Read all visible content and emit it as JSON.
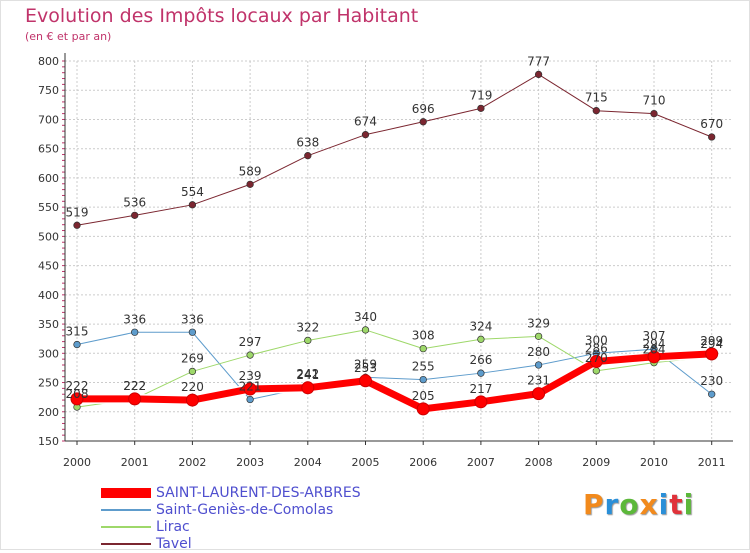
{
  "header": {
    "title": "Evolution des Impôts locaux par Habitant",
    "subtitle": "(en € et par an)"
  },
  "logo": {
    "text": "Proxiti",
    "colors": [
      "#f28a1c",
      "#2a8fd8",
      "#5cb83a",
      "#f28a1c",
      "#2a8fd8",
      "#e0323a",
      "#5cb83a"
    ]
  },
  "chart_data": {
    "type": "line",
    "x": [
      "2000",
      "2001",
      "2002",
      "2003",
      "2004",
      "2005",
      "2006",
      "2007",
      "2008",
      "2009",
      "2010",
      "2011"
    ],
    "ylim": [
      150,
      800
    ],
    "yticks": [
      150,
      200,
      250,
      300,
      350,
      400,
      450,
      500,
      550,
      600,
      650,
      700,
      750,
      800
    ],
    "grid": true,
    "legend_position": "bottom-left",
    "series": [
      {
        "name": "Tavel",
        "color": "#7b2630",
        "width": 1,
        "values": [
          519,
          536,
          554,
          589,
          638,
          674,
          696,
          719,
          777,
          715,
          710,
          670
        ],
        "labels": [
          "519",
          "536",
          "554",
          "589",
          "638",
          "674",
          "696",
          "719",
          "777",
          "715",
          "710",
          "670"
        ]
      },
      {
        "name": "Saint-Geniès-de-Comolas",
        "color": "#5e9ccc",
        "width": 1,
        "values": [
          315,
          336,
          336,
          221,
          242,
          259,
          255,
          266,
          280,
          300,
          307,
          230
        ],
        "labels": [
          "315",
          "336",
          "336",
          "221",
          "242",
          "259",
          "255",
          "266",
          "280",
          "300",
          "307",
          "230"
        ]
      },
      {
        "name": "Lirac",
        "color": "#9ed86a",
        "width": 1,
        "values": [
          208,
          222,
          269,
          297,
          322,
          340,
          308,
          324,
          329,
          270,
          284,
          294
        ],
        "labels": [
          "208",
          "222",
          "269",
          "297",
          "322",
          "340",
          "308",
          "324",
          "329",
          "270",
          "284",
          "294"
        ]
      },
      {
        "name": "SAINT-LAURENT-DES-ARBRES",
        "color": "#ff0000",
        "width": 7,
        "values": [
          222,
          222,
          220,
          239,
          241,
          253,
          205,
          217,
          231,
          286,
          294,
          299
        ],
        "labels": [
          "222",
          "222",
          "220",
          "239",
          "241",
          "253",
          "205",
          "217",
          "231",
          "286",
          "294",
          "299"
        ]
      }
    ],
    "legend_order": [
      "SAINT-LAURENT-DES-ARBRES",
      "Saint-Geniès-de-Comolas",
      "Lirac",
      "Tavel"
    ]
  }
}
